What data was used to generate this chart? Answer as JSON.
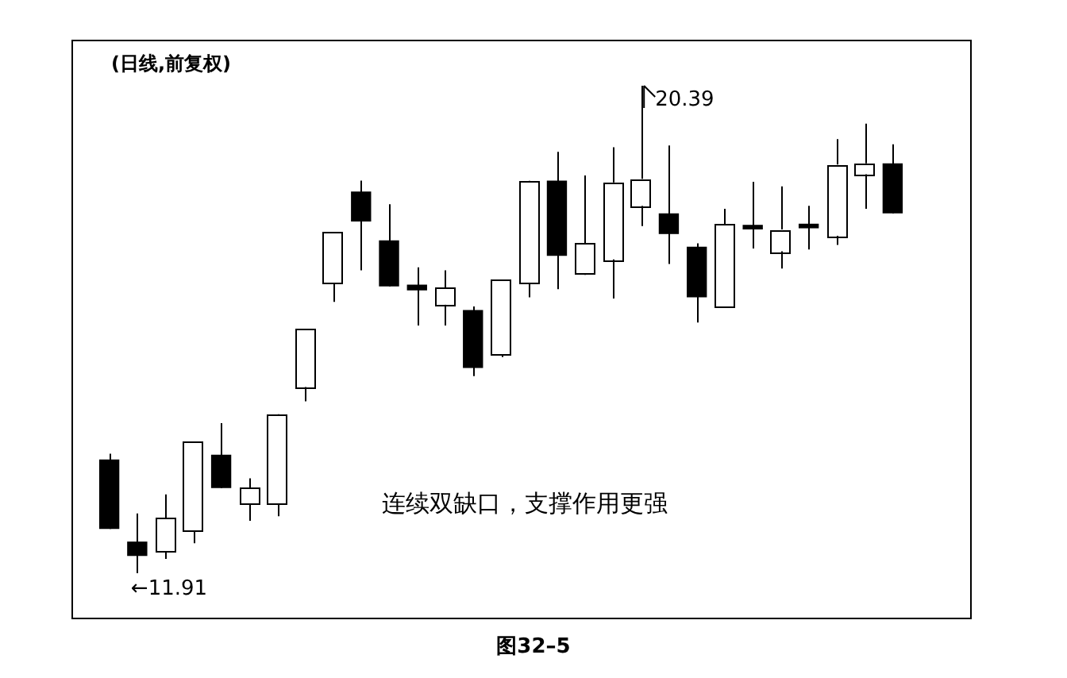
{
  "chart_data": {
    "type": "candlestick",
    "title": "(日线,前复权)",
    "categories": [
      null,
      null,
      null,
      null,
      null,
      null,
      null,
      null,
      null,
      null,
      null,
      null,
      null,
      null,
      null,
      null,
      null,
      null,
      null,
      null,
      null,
      null,
      null,
      null,
      null,
      null,
      null,
      null,
      null
    ],
    "ohlc": [
      [
        13.89,
        13.99,
        12.68,
        12.68
      ],
      [
        12.46,
        12.95,
        11.91,
        12.21
      ],
      [
        12.29,
        13.28,
        12.16,
        12.87
      ],
      [
        12.65,
        14.19,
        12.43,
        14.19
      ],
      [
        13.97,
        14.52,
        13.39,
        13.39
      ],
      [
        13.12,
        13.56,
        12.82,
        13.39
      ],
      [
        13.12,
        14.68,
        12.9,
        14.68
      ],
      [
        15.15,
        16.16,
        14.9,
        16.16
      ],
      [
        16.96,
        17.84,
        16.63,
        17.84
      ],
      [
        18.55,
        18.74,
        17.18,
        18.03
      ],
      [
        17.7,
        18.33,
        16.9,
        16.9
      ],
      [
        16.93,
        17.23,
        16.22,
        16.83
      ],
      [
        16.58,
        17.18,
        16.22,
        16.88
      ],
      [
        16.49,
        16.55,
        15.34,
        15.48
      ],
      [
        15.72,
        17.01,
        15.67,
        17.01
      ],
      [
        16.96,
        18.74,
        16.71,
        18.74
      ],
      [
        18.74,
        19.24,
        16.85,
        17.43
      ],
      [
        17.12,
        18.83,
        17.1,
        17.65
      ],
      [
        17.37,
        19.32,
        16.69,
        18.71
      ],
      [
        18.3,
        20.39,
        17.95,
        18.77
      ],
      [
        18.17,
        19.35,
        17.29,
        17.81
      ],
      [
        17.59,
        17.65,
        16.27,
        16.71
      ],
      [
        16.55,
        18.25,
        16.55,
        17.98
      ],
      [
        17.97,
        18.72,
        17.56,
        17.89
      ],
      [
        17.51,
        18.64,
        17.21,
        17.89
      ],
      [
        17.99,
        18.3,
        17.54,
        17.91
      ],
      [
        17.78,
        19.46,
        17.62,
        19.02
      ],
      [
        18.85,
        19.73,
        18.25,
        19.04
      ],
      [
        19.04,
        19.37,
        18.17,
        18.17
      ]
    ],
    "colors": [
      "#000000",
      "#000000",
      "#ffffff",
      "#ffffff",
      "#000000",
      "#ffffff",
      "#ffffff",
      "#ffffff",
      "#ffffff",
      "#000000",
      "#000000",
      "#000000",
      "#ffffff",
      "#000000",
      "#ffffff",
      "#ffffff",
      "#000000",
      "#ffffff",
      "#ffffff",
      "#ffffff",
      "#000000",
      "#000000",
      "#ffffff",
      "#000000",
      "#ffffff",
      "#000000",
      "#ffffff",
      "#ffffff",
      "#000000"
    ],
    "annotations": [
      "20.39",
      "←11.91",
      "连续双缺口，支撑作用更强",
      "图32–5"
    ]
  }
}
